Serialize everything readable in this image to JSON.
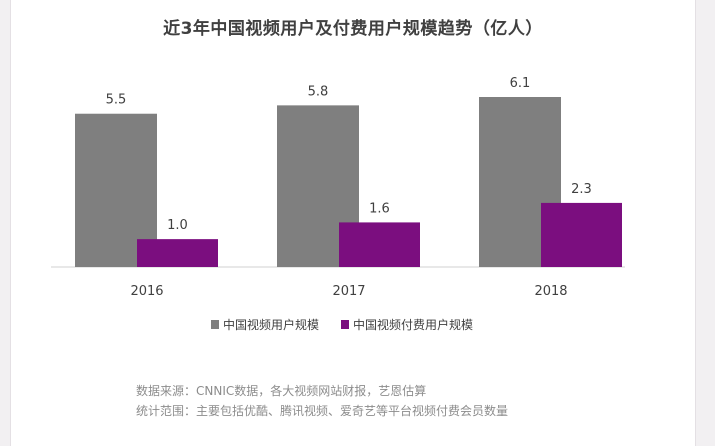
{
  "chart_data": {
    "type": "bar",
    "title": "近3年中国视频用户及付费用户规模趋势（亿人）",
    "categories": [
      "2016",
      "2017",
      "2018"
    ],
    "series": [
      {
        "name": "中国视频用户规模",
        "values": [
          5.5,
          5.8,
          6.1
        ],
        "labels": [
          "5.5",
          "5.8",
          "6.1"
        ],
        "color": "#7f7f7f"
      },
      {
        "name": "中国视频付费用户规模",
        "values": [
          1.0,
          1.6,
          2.3
        ],
        "labels": [
          "1.0",
          "1.6",
          "2.3"
        ],
        "color": "#7b0e7f"
      }
    ],
    "ylim": [
      0,
      6.1
    ],
    "xlabel": "",
    "ylabel": "",
    "legend": "bottom"
  },
  "notes": {
    "source": "数据来源：CNNIC数据，各大视频网站财报，艺恩估算",
    "scope": "统计范围：主要包括优酷、腾讯视频、爱奇艺等平台视频付费会员数量"
  }
}
